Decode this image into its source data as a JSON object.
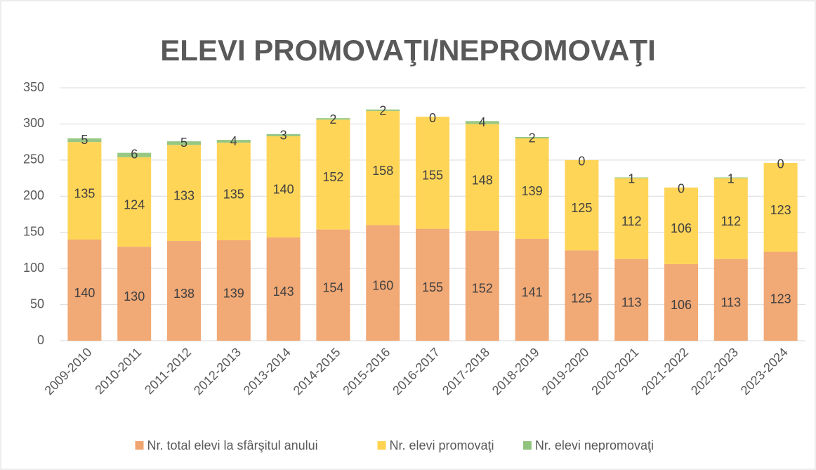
{
  "chart_data": {
    "type": "stacked_bar",
    "title": "ELEVI PROMOVAŢI/NEPROMOVAŢI",
    "categories": [
      "2009-2010",
      "2010-2011",
      "2011-2012",
      "2012-2013",
      "2013-2014",
      "2014-2015",
      "2015-2016",
      "2016-2017",
      "2017-2018",
      "2018-2019",
      "2019-2020",
      "2020-2021",
      "2021-2022",
      "2022-2023",
      "2023-2024"
    ],
    "series": [
      {
        "name": "Nr. total elevi la sfârşitul anului",
        "color": "#f0a46f",
        "values": [
          140,
          130,
          138,
          139,
          143,
          154,
          160,
          155,
          152,
          141,
          125,
          113,
          106,
          113,
          123
        ]
      },
      {
        "name": "Nr. elevi promovaţi",
        "color": "#ffd34f",
        "values": [
          135,
          124,
          133,
          135,
          140,
          152,
          158,
          155,
          148,
          139,
          125,
          112,
          106,
          112,
          123
        ]
      },
      {
        "name": "Nr. elevi nepromovaţi",
        "color": "#90c47c",
        "values": [
          5,
          6,
          5,
          4,
          3,
          2,
          2,
          0,
          4,
          2,
          0,
          1,
          0,
          1,
          0
        ]
      }
    ],
    "ylim": [
      0,
      350
    ],
    "yticks": [
      0,
      50,
      100,
      150,
      200,
      250,
      300,
      350
    ],
    "grid": true,
    "legend": "bottom"
  }
}
